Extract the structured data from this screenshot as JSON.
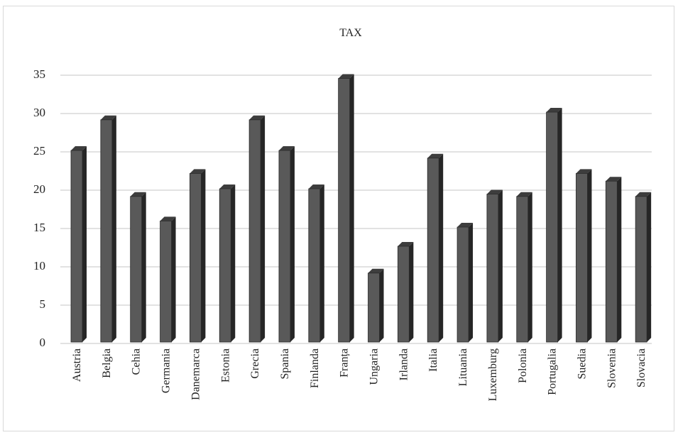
{
  "chart_data": {
    "type": "bar",
    "title": "TAX",
    "xlabel": "",
    "ylabel": "",
    "ylim": [
      0,
      35
    ],
    "yticks": [
      0,
      5,
      10,
      15,
      20,
      25,
      30,
      35
    ],
    "grid": true,
    "legend": "none",
    "bar_color": "#595959",
    "categories": [
      "Austria",
      "Belgia",
      "Cehia",
      "Germania",
      "Danemarca",
      "Estonia",
      "Grecia",
      "Spania",
      "Finlanda",
      "Franța",
      "Ungaria",
      "Irlanda",
      "Italia",
      "Lituania",
      "Luxemburg",
      "Polonia",
      "Portugalia",
      "Suedia",
      "Slovenia",
      "Slovacia"
    ],
    "values": [
      25,
      29,
      19,
      15.8,
      22,
      20,
      29,
      25,
      20,
      34.4,
      9,
      12.5,
      24,
      15,
      19.3,
      19,
      30,
      22,
      21,
      19
    ]
  }
}
